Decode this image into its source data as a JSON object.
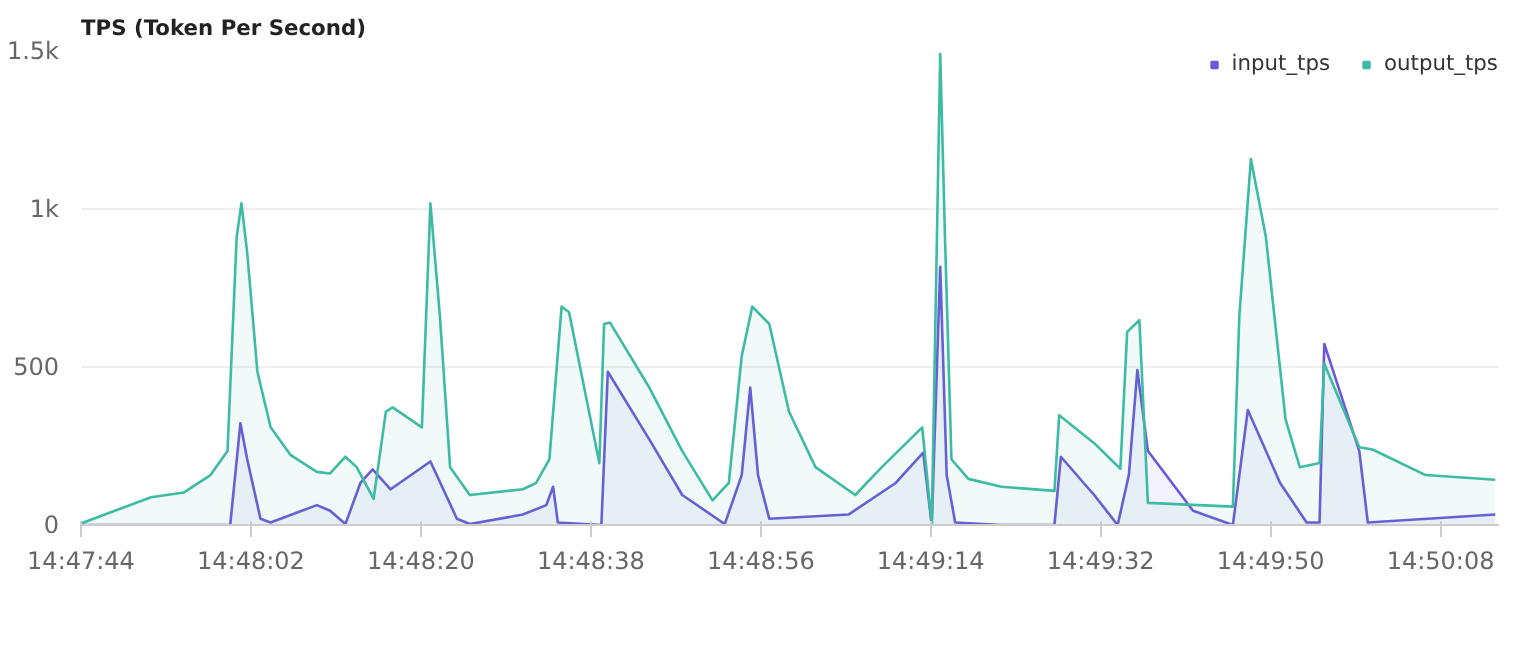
{
  "chart_data": {
    "type": "area",
    "title": "TPS (Token Per Second)",
    "xlim": [
      14.79556,
      14.83728
    ],
    "ylim": [
      0,
      1500
    ],
    "xticks": [
      {
        "value": 14.79556,
        "label": "14:47:44"
      },
      {
        "value": 14.80056,
        "label": "14:48:02"
      },
      {
        "value": 14.80556,
        "label": "14:48:20"
      },
      {
        "value": 14.81056,
        "label": "14:48:38"
      },
      {
        "value": 14.81556,
        "label": "14:48:56"
      },
      {
        "value": 14.82056,
        "label": "14:49:14"
      },
      {
        "value": 14.82556,
        "label": "14:49:32"
      },
      {
        "value": 14.83056,
        "label": "14:49:50"
      },
      {
        "value": 14.83556,
        "label": "14:50:08"
      }
    ],
    "yticks": [
      0,
      500,
      {
        "value": 1000,
        "label": "1k"
      },
      {
        "value": 1500,
        "label": "1.5k"
      }
    ],
    "grid": "y",
    "legend": "top right",
    "marker": "none",
    "line_style": "solid",
    "series": [
      {
        "name": "input_tps",
        "color": "#6a5ad8",
        "x": [
          14.79556,
          14.79995,
          14.80025,
          14.80045,
          14.80084,
          14.80114,
          14.8025,
          14.80289,
          14.80334,
          14.80378,
          14.80414,
          14.80467,
          14.80584,
          14.80662,
          14.807,
          14.80856,
          14.80925,
          14.80945,
          14.80959,
          14.81087,
          14.81106,
          14.81228,
          14.81325,
          14.8145,
          14.815,
          14.81525,
          14.81548,
          14.81581,
          14.81814,
          14.81953,
          14.82034,
          14.82059,
          14.82084,
          14.82103,
          14.82128,
          14.82264,
          14.8242,
          14.82439,
          14.82537,
          14.82606,
          14.82639,
          14.82664,
          14.82695,
          14.82828,
          14.82945,
          14.82989,
          14.83084,
          14.83162,
          14.832,
          14.83214,
          14.83317,
          14.83342,
          14.83717
        ],
        "values": [
          0,
          0,
          322,
          208,
          20,
          8,
          63,
          45,
          3,
          133,
          176,
          113,
          201,
          20,
          3,
          33,
          63,
          121,
          8,
          0,
          485,
          271,
          95,
          3,
          158,
          435,
          158,
          20,
          33,
          133,
          229,
          0,
          817,
          158,
          8,
          0,
          0,
          216,
          95,
          0,
          158,
          490,
          234,
          45,
          0,
          364,
          133,
          8,
          8,
          573,
          234,
          8,
          33
        ]
      },
      {
        "name": "output_tps",
        "color": "#3dbba3",
        "x": [
          14.79556,
          14.79762,
          14.79859,
          14.79937,
          14.79987,
          14.80014,
          14.80028,
          14.80045,
          14.80075,
          14.80114,
          14.80173,
          14.8025,
          14.80289,
          14.80334,
          14.80367,
          14.80417,
          14.80453,
          14.80473,
          14.80559,
          14.80584,
          14.80612,
          14.80642,
          14.807,
          14.80856,
          14.80895,
          14.80934,
          14.8097,
          14.80992,
          14.81081,
          14.81095,
          14.81112,
          14.81228,
          14.81325,
          14.81414,
          14.81462,
          14.815,
          14.81531,
          14.81581,
          14.81639,
          14.81717,
          14.81834,
          14.81912,
          14.82031,
          14.82045,
          14.82059,
          14.82084,
          14.82098,
          14.82117,
          14.82167,
          14.82264,
          14.8242,
          14.82434,
          14.82537,
          14.82614,
          14.82634,
          14.8267,
          14.82695,
          14.82945,
          14.82964,
          14.82998,
          14.83042,
          14.831,
          14.83142,
          14.832,
          14.83214,
          14.83317,
          14.83356,
          14.83512,
          14.83717
        ],
        "values": [
          5,
          88,
          103,
          158,
          234,
          912,
          1018,
          862,
          485,
          309,
          221,
          168,
          163,
          216,
          183,
          83,
          359,
          372,
          309,
          1018,
          660,
          183,
          95,
          113,
          133,
          208,
          691,
          673,
          196,
          636,
          641,
          435,
          234,
          78,
          133,
          535,
          691,
          636,
          359,
          183,
          95,
          183,
          309,
          158,
          0,
          1490,
          912,
          208,
          146,
          121,
          108,
          347,
          259,
          178,
          611,
          648,
          70,
          58,
          661,
          1158,
          912,
          334,
          183,
          196,
          510,
          246,
          239,
          158,
          143
        ]
      }
    ]
  }
}
